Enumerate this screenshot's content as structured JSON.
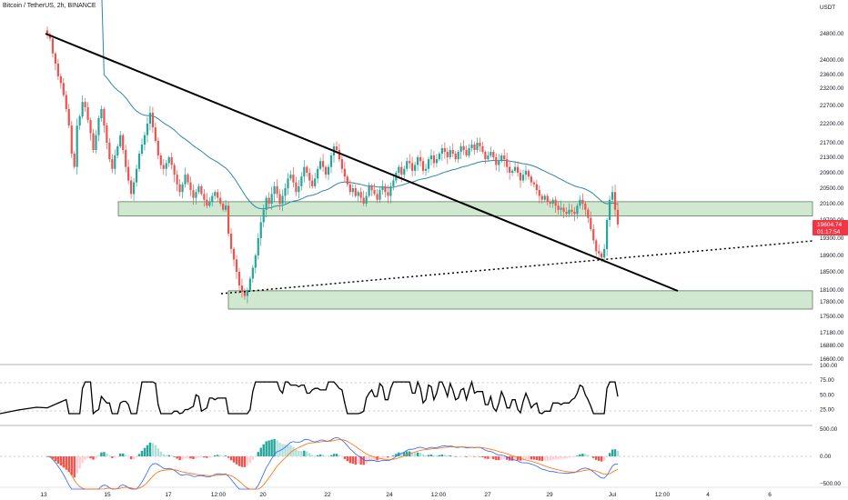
{
  "header": {
    "symbol_title": "Bitcoin / TetherUS, 2h, BINANCE",
    "currency": "USDT"
  },
  "price_badge": {
    "price": "19604.74",
    "countdown": "01:17:54",
    "color": "#f23645"
  },
  "colors": {
    "up": "#26a69a",
    "down": "#ef5350",
    "ma": "#2e86ab",
    "zone_fill": "#cfe8cf",
    "zone_stroke": "#4c6b4c",
    "trendline": "#000000",
    "rsi": "#000000",
    "macd_hist_up_strong": "#26a69a",
    "macd_hist_up_weak": "#b2dfdb",
    "macd_hist_down_strong": "#ef5350",
    "macd_hist_down_weak": "#ffcdd2",
    "macd_line": "#2962ff",
    "signal_line": "#ff6d00"
  },
  "chart_data": {
    "type": "candlestick",
    "price_axis": {
      "ticks": [
        "24800.00",
        "24000.00",
        "23600.00",
        "23200.00",
        "22700.00",
        "22200.00",
        "21700.00",
        "21300.00",
        "20900.00",
        "20500.00",
        "20100.00",
        "19700.00",
        "19300.00",
        "18900.00",
        "18500.00",
        "18100.00",
        "17800.00",
        "17500.00",
        "17180.00",
        "16880.00",
        "16600.00"
      ],
      "range": [
        16600,
        25200
      ]
    },
    "time_axis": {
      "ticks": [
        "13",
        "15",
        "17",
        "12:00",
        "20",
        "22",
        "24",
        "12:00",
        "27",
        "29",
        "Jul",
        "12:00",
        "4",
        "6"
      ]
    },
    "candles_close": [
      24780,
      24650,
      24200,
      23900,
      23550,
      23350,
      23000,
      22600,
      22150,
      21400,
      21050,
      22150,
      22400,
      22800,
      22650,
      22300,
      21950,
      21500,
      21900,
      22350,
      22600,
      22150,
      21700,
      21250,
      21000,
      21350,
      21600,
      21900,
      21500,
      21050,
      20700,
      20350,
      20650,
      21000,
      21400,
      21650,
      21900,
      22200,
      22500,
      22100,
      21750,
      21350,
      21100,
      21000,
      21150,
      21300,
      21100,
      20850,
      20600,
      20400,
      20600,
      20850,
      20650,
      20450,
      20250,
      20400,
      20550,
      20350,
      20200,
      20050,
      20150,
      20300,
      20400,
      20250,
      20100,
      19950,
      20050,
      19400,
      19050,
      18800,
      18500,
      18200,
      18050,
      17950,
      18100,
      18350,
      18600,
      18900,
      19300,
      19650,
      19950,
      20250,
      20100,
      20350,
      20550,
      20350,
      20100,
      20300,
      20500,
      20750,
      20850,
      20650,
      20400,
      20550,
      20800,
      21050,
      20900,
      20700,
      20550,
      20750,
      21000,
      21200,
      21050,
      20850,
      21050,
      21350,
      21600,
      21500,
      21250,
      21000,
      20800,
      20600,
      20400,
      20500,
      20300,
      20400,
      20250,
      20100,
      20300,
      20550,
      20450,
      20350,
      20200,
      20450,
      20550,
      20400,
      20300,
      20550,
      20700,
      20900,
      21050,
      20850,
      21000,
      21200,
      21150,
      20950,
      21100,
      21300,
      21200,
      20950,
      21000,
      21250,
      21350,
      21150,
      21250,
      21400,
      21550,
      21450,
      21300,
      21500,
      21400,
      21250,
      21450,
      21600,
      21500,
      21350,
      21550,
      21650,
      21500,
      21700,
      21600,
      21450,
      21250,
      21350,
      21450,
      21300,
      21100,
      21200,
      21350,
      21250,
      21050,
      20900,
      20950,
      21050,
      20900,
      20700,
      20850,
      20950,
      20800,
      20650,
      20600,
      20450,
      20300,
      20200,
      20300,
      20150,
      20100,
      20200,
      20050,
      19950,
      20000,
      19900,
      19850,
      19950,
      19900,
      19850,
      20050,
      20200,
      20100,
      19950,
      19750,
      19500,
      19250,
      19000,
      18950,
      18850,
      19050,
      19700,
      20200,
      20400,
      19950,
      19604.74
    ],
    "overlays": {
      "moving_average": "blue line",
      "descending_trendline": [
        "13",
        "Jul"
      ],
      "dotted_support_line": [
        "19 (12:00)",
        "6"
      ],
      "support_zones": [
        {
          "price_from": 19800,
          "price_to": 20150
        },
        {
          "price_from": 17650,
          "price_to": 18080
        }
      ]
    },
    "rsi": {
      "axis_ticks": [
        "100.00",
        "75.00",
        "50.00",
        "25.00"
      ],
      "range": [
        0,
        100
      ],
      "last": 47
    },
    "macd": {
      "axis_ticks": [
        "500.00",
        "0.00",
        "−500.00"
      ],
      "range": [
        -650,
        650
      ]
    }
  }
}
